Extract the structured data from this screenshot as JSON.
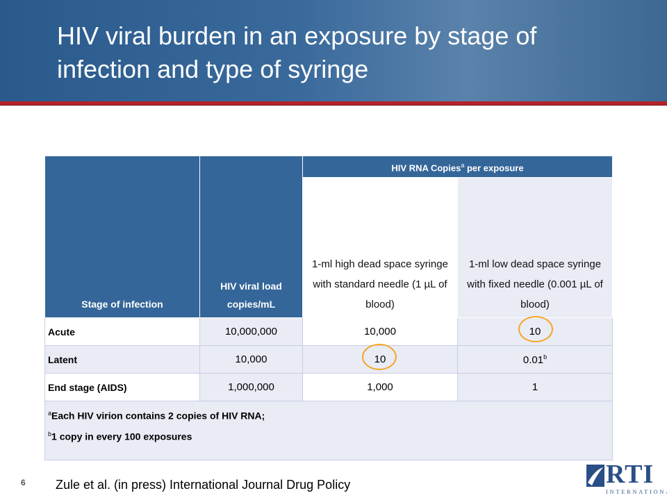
{
  "header": {
    "title": "HIV viral burden in an exposure by stage of infection and type of syringe"
  },
  "table": {
    "group_header": {
      "text": "HIV RNA Copies",
      "mark": "a",
      "suffix": " per exposure"
    },
    "columns": [
      "Stage of infection",
      "HIV viral load copies/mL",
      "1-ml high dead space syringe with standard needle (1 µL of blood)",
      "1-ml low dead space syringe with fixed needle (0.001 µL of blood)"
    ],
    "rows": [
      [
        "Acute",
        "10,000,000",
        "10,000",
        "10"
      ],
      [
        "Latent",
        "10,000",
        "10",
        "0.01"
      ],
      [
        "End stage (AIDS)",
        "1,000,000",
        "1,000",
        "1"
      ]
    ],
    "row_marks": {
      "1": {
        "3": "b"
      }
    },
    "footnotes": [
      {
        "mark": "a",
        "text": "Each HIV virion contains 2 copies of HIV RNA;"
      },
      {
        "mark": "b",
        "text": "1 copy in every 100 exposures"
      }
    ]
  },
  "footer": {
    "page_number": "6",
    "citation": "Zule et al. (in press) International Journal Drug Policy",
    "logo": {
      "name": "RTI",
      "subtitle": "INTERNATIONAL"
    }
  }
}
